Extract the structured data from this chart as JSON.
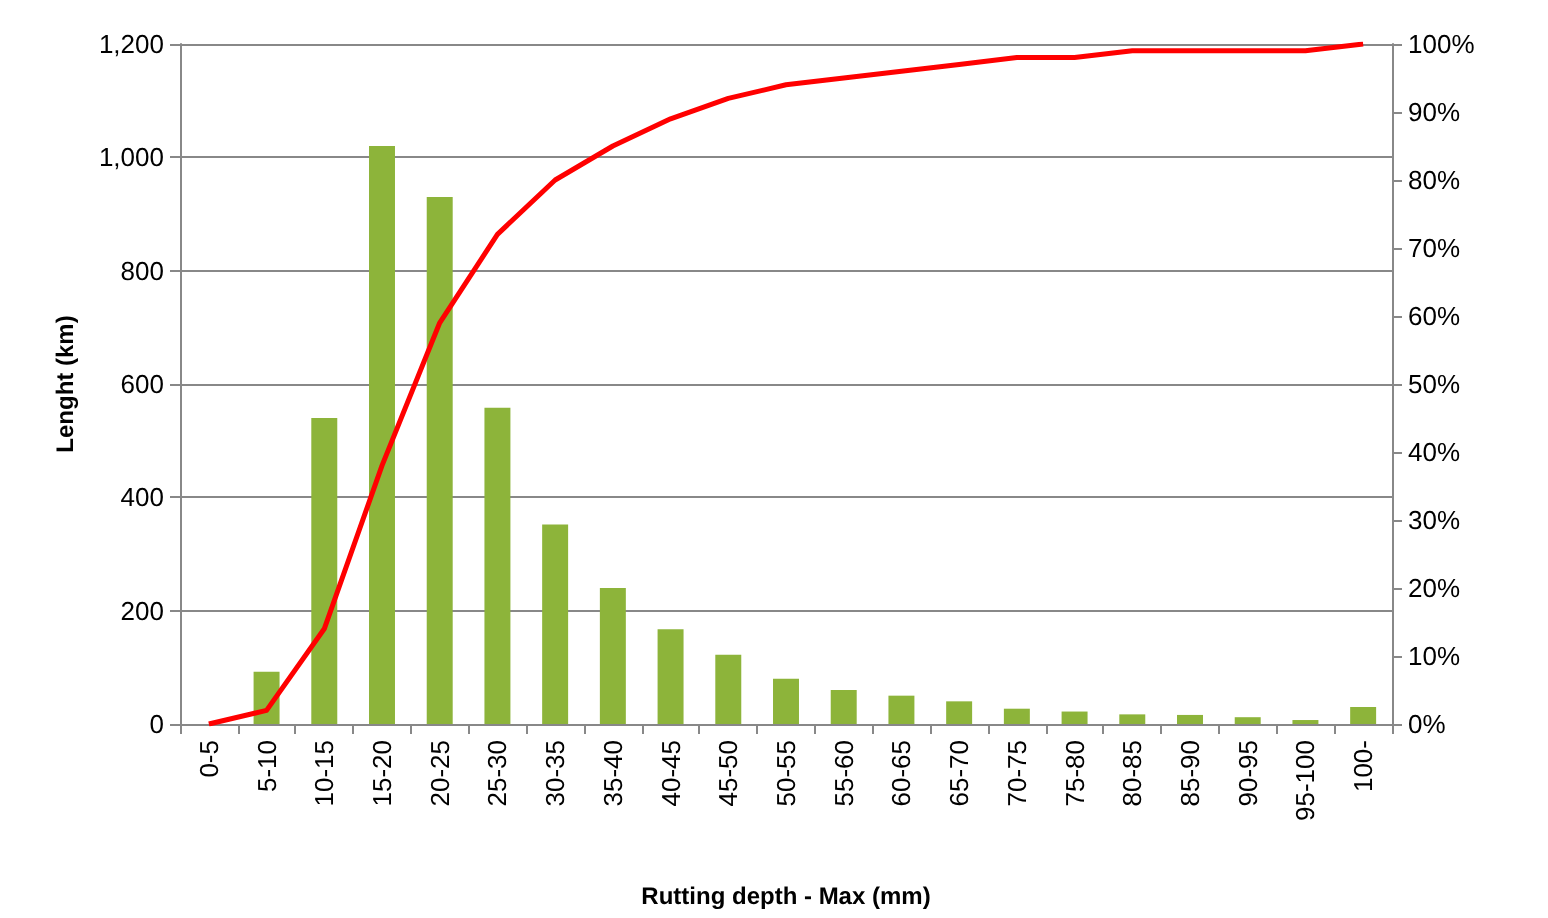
{
  "chart_data": {
    "type": "bar",
    "xlabel": "Rutting depth - Max (mm)",
    "ylabel": "Lenght (km)",
    "categories": [
      "0-5",
      "5-10",
      "10-15",
      "15-20",
      "20-25",
      "25-30",
      "30-35",
      "35-40",
      "40-45",
      "45-50",
      "50-55",
      "55-60",
      "60-65",
      "65-70",
      "70-75",
      "75-80",
      "80-85",
      "85-90",
      "90-95",
      "95-100",
      "100-"
    ],
    "series": [
      {
        "color": "#8db43a",
        "values": [
          0,
          92,
          540,
          1020,
          930,
          558,
          352,
          240,
          167,
          122,
          80,
          60,
          50,
          40,
          27,
          22,
          17,
          16,
          12,
          7,
          30
        ]
      },
      {
        "type": "line",
        "axis": "y2",
        "color": "#ff0000",
        "values": [
          0,
          2,
          14,
          38,
          59,
          72,
          80,
          85,
          89,
          92,
          94,
          95,
          96,
          97,
          98,
          98,
          99,
          99,
          99,
          99,
          100
        ]
      }
    ],
    "ylim": [
      0,
      1200
    ],
    "yticks": [
      0,
      200,
      400,
      600,
      800,
      {
        "value": 1000,
        "label": "1,000"
      },
      {
        "value": 1200,
        "label": "1,200"
      }
    ],
    "y2lim": [
      0,
      100
    ],
    "y2ticks": [
      {
        "value": 0,
        "label": "0%"
      },
      {
        "value": 10,
        "label": "10%"
      },
      {
        "value": 20,
        "label": "20%"
      },
      {
        "value": 30,
        "label": "30%"
      },
      {
        "value": 40,
        "label": "40%"
      },
      {
        "value": 50,
        "label": "50%"
      },
      {
        "value": 60,
        "label": "60%"
      },
      {
        "value": 70,
        "label": "70%"
      },
      {
        "value": 80,
        "label": "80%"
      },
      {
        "value": 90,
        "label": "90%"
      },
      {
        "value": 100,
        "label": "100%"
      }
    ],
    "grid": "y",
    "marker": "none",
    "line_style": "solid"
  }
}
